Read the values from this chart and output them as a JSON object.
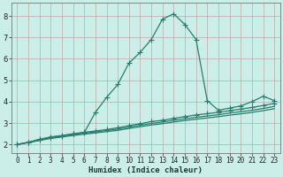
{
  "xlabel": "Humidex (Indice chaleur)",
  "x": [
    0,
    1,
    2,
    3,
    4,
    5,
    6,
    7,
    8,
    9,
    10,
    11,
    12,
    13,
    14,
    15,
    16,
    17,
    18,
    19,
    20,
    21,
    22,
    23
  ],
  "line1": [
    2.0,
    2.1,
    2.2,
    2.35,
    2.4,
    2.5,
    2.55,
    3.5,
    4.2,
    4.8,
    5.8,
    6.3,
    6.9,
    7.85,
    8.1,
    7.6,
    6.9,
    4.05,
    3.6,
    3.7,
    3.8,
    4.0,
    4.25,
    4.05
  ],
  "line2": [
    2.0,
    2.1,
    2.25,
    2.35,
    2.42,
    2.5,
    2.57,
    2.63,
    2.7,
    2.78,
    2.88,
    2.97,
    3.07,
    3.13,
    3.22,
    3.3,
    3.38,
    3.44,
    3.5,
    3.58,
    3.65,
    3.73,
    3.82,
    3.92
  ],
  "line3": [
    2.0,
    2.1,
    2.22,
    2.32,
    2.39,
    2.46,
    2.53,
    2.59,
    2.65,
    2.72,
    2.81,
    2.9,
    2.98,
    3.05,
    3.13,
    3.2,
    3.27,
    3.33,
    3.39,
    3.47,
    3.53,
    3.6,
    3.68,
    3.78
  ],
  "line4": [
    2.0,
    2.09,
    2.19,
    2.28,
    2.35,
    2.42,
    2.48,
    2.54,
    2.6,
    2.66,
    2.75,
    2.83,
    2.91,
    2.97,
    3.05,
    3.12,
    3.18,
    3.24,
    3.3,
    3.37,
    3.43,
    3.5,
    3.58,
    3.67
  ],
  "line_color": "#2a7d6e",
  "bg_color": "#cbeee8",
  "grid_color": "#c0aaaa",
  "ylim": [
    1.6,
    8.6
  ],
  "xlim": [
    -0.5,
    23.5
  ],
  "yticks": [
    2,
    3,
    4,
    5,
    6,
    7,
    8
  ],
  "xticks": [
    0,
    1,
    2,
    3,
    4,
    5,
    6,
    7,
    8,
    9,
    10,
    11,
    12,
    13,
    14,
    15,
    16,
    17,
    18,
    19,
    20,
    21,
    22,
    23
  ],
  "marker": "+",
  "markersize": 4.0,
  "linewidth": 0.9,
  "tick_fontsize": 5.5,
  "xlabel_fontsize": 6.5
}
